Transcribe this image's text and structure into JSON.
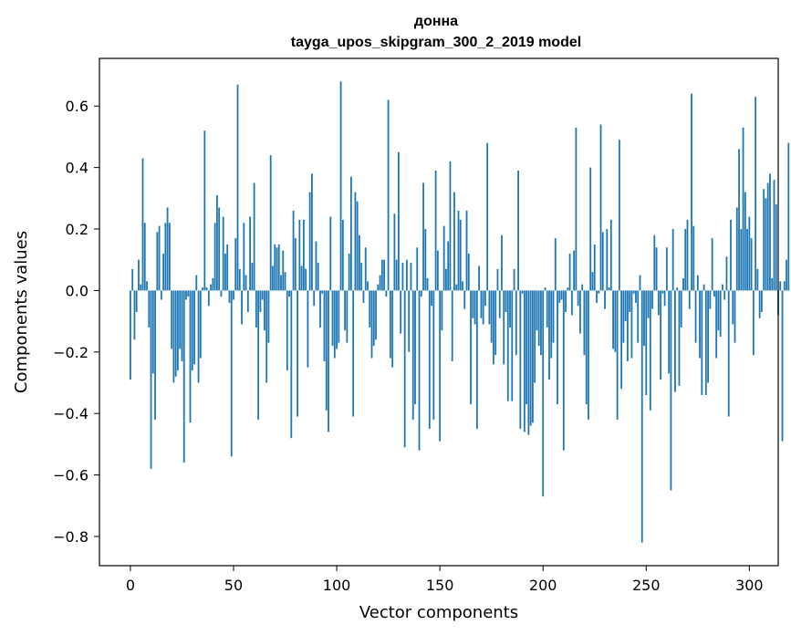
{
  "chart_data": {
    "type": "bar",
    "title": "донна",
    "subtitle": "tayga_upos_skipgram_300_2_2019 model",
    "xlabel": "Vector components",
    "ylabel": "Components values",
    "xlim": [
      -15,
      314
    ],
    "ylim": [
      -0.895,
      0.755
    ],
    "xticks": [
      0,
      50,
      100,
      150,
      200,
      250,
      300
    ],
    "xtick_labels": [
      "0",
      "50",
      "100",
      "150",
      "200",
      "250",
      "300"
    ],
    "yticks": [
      -0.8,
      -0.6,
      -0.4,
      -0.2,
      0.0,
      0.2,
      0.4,
      0.6
    ],
    "ytick_labels": [
      "−0.8",
      "−0.6",
      "−0.4",
      "−0.2",
      "0.0",
      "0.2",
      "0.4",
      "0.6"
    ],
    "bar_color": "#1f77b4",
    "grid": false,
    "values": [
      -0.29,
      0.07,
      -0.16,
      -0.07,
      0.1,
      0.02,
      0.43,
      0.22,
      0.03,
      -0.12,
      -0.58,
      -0.27,
      -0.42,
      0.19,
      0.21,
      -0.03,
      0.12,
      0.22,
      0.27,
      0.22,
      -0.19,
      -0.3,
      -0.28,
      -0.26,
      -0.19,
      -0.23,
      -0.56,
      -0.03,
      -0.02,
      -0.43,
      -0.26,
      -0.24,
      0.05,
      -0.3,
      -0.22,
      0.01,
      0.52,
      0.01,
      -0.05,
      0.02,
      0.04,
      0.22,
      0.31,
      0.27,
      -0.02,
      0.24,
      0.12,
      0.15,
      -0.04,
      -0.54,
      -0.03,
      0.17,
      0.67,
      0.07,
      -0.11,
      0.22,
      0.05,
      -0.07,
      0.24,
      0.09,
      0.35,
      -0.12,
      -0.42,
      -0.07,
      -0.03,
      -0.13,
      -0.3,
      -0.17,
      0.44,
      0.08,
      0.15,
      0.14,
      0.15,
      0.05,
      0.13,
      0.06,
      -0.26,
      -0.02,
      -0.48,
      0.26,
      0.17,
      -0.41,
      0.23,
      0.08,
      0.23,
      0.07,
      -0.25,
      0.32,
      0.38,
      -0.05,
      0.16,
      0.09,
      -0.12,
      -0.01,
      -0.23,
      -0.39,
      -0.46,
      0.24,
      -0.18,
      -0.22,
      -0.19,
      -0.17,
      0.68,
      0.23,
      -0.13,
      -0.17,
      0.12,
      0.37,
      -0.41,
      0.32,
      0.29,
      0.18,
      0.09,
      -0.04,
      0.14,
      0.03,
      -0.12,
      -0.22,
      -0.18,
      -0.16,
      0.02,
      0.05,
      0.1,
      0.1,
      -0.02,
      0.62,
      -0.22,
      -0.25,
      0.25,
      0.1,
      0.45,
      -0.14,
      0.09,
      -0.51,
      0.1,
      -0.2,
      0.09,
      -0.42,
      -0.37,
      0.14,
      -0.52,
      -0.02,
      0.35,
      0.2,
      0.04,
      -0.45,
      -0.05,
      -0.42,
      0.39,
      0.13,
      -0.49,
      -0.13,
      0.21,
      0.07,
      0.16,
      0.42,
      -0.23,
      0.32,
      0.02,
      0.26,
      0.23,
      0.03,
      -0.06,
      0.26,
      0.12,
      -0.37,
      -0.09,
      -0.11,
      -0.45,
      0.08,
      -0.09,
      -0.11,
      -0.05,
      0.48,
      -0.11,
      -0.17,
      -0.24,
      -0.21,
      0.07,
      -0.09,
      0.18,
      -0.24,
      -0.07,
      -0.36,
      -0.12,
      -0.36,
      0.07,
      -0.21,
      0.39,
      -0.45,
      -0.01,
      -0.46,
      -0.37,
      -0.47,
      -0.44,
      -0.43,
      -0.3,
      -0.13,
      -0.18,
      -0.21,
      -0.67,
      0.01,
      -0.12,
      -0.29,
      -0.22,
      -0.17,
      0.17,
      -0.37,
      -0.04,
      -0.03,
      -0.52,
      -0.07,
      0.01,
      0.12,
      -0.08,
      0.13,
      0.53,
      -0.05,
      -0.14,
      0.02,
      -0.21,
      -0.37,
      -0.42,
      0.4,
      0.06,
      0.15,
      -0.04,
      -0.01,
      0.54,
      0.19,
      -0.06,
      0.2,
      0.01,
      0.23,
      -0.19,
      -0.2,
      -0.42,
      0.49,
      -0.32,
      -0.17,
      -0.1,
      -0.23,
      -0.07,
      -0.22,
      -0.01,
      -0.04,
      -0.17,
      0.05,
      -0.82,
      -0.18,
      -0.34,
      -0.09,
      -0.39,
      -0.06,
      0.18,
      0.14,
      -0.08,
      -0.29,
      -0.01,
      -0.05,
      0.14,
      -0.27,
      -0.65,
      0.2,
      -0.33,
      0.01,
      -0.31,
      -0.12,
      0.04,
      0.2,
      0.23,
      -0.06,
      0.64,
      0.21,
      -0.17,
      0.05,
      -0.22,
      -0.34,
      0.02,
      -0.34,
      -0.3,
      -0.06,
      0.17,
      -0.02,
      -0.22,
      -0.13,
      -0.15,
      0.02,
      -0.03,
      0.11,
      -0.41,
      0.23,
      -0.11,
      -0.17,
      0.27,
      0.46,
      0.2,
      0.53,
      0.32,
      0.2,
      0.24,
      0.17,
      -0.21,
      0.63,
      0.07,
      -0.09,
      -0.07,
      0.33,
      0.3,
      0.35,
      0.38,
      0.04,
      0.36,
      0.28,
      -0.08,
      0.03,
      -0.49,
      0.03,
      0.1,
      0.48
    ]
  }
}
